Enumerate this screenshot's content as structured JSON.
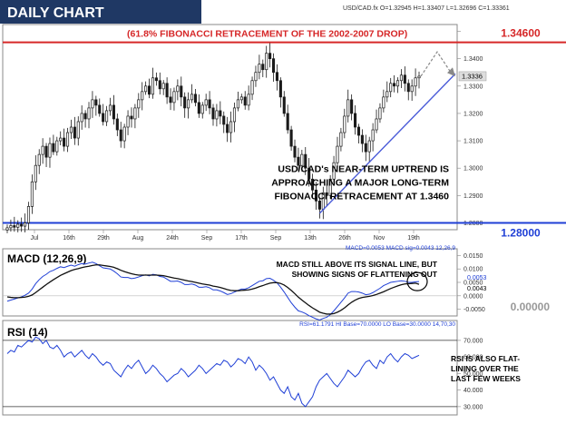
{
  "header": {
    "title": "DAILY CHART",
    "symbol_info": "USD/CAD.fx O=1.32945 H=1.33407 L=1.32696 C=1.33361"
  },
  "colors": {
    "title_bg": "#1f3864",
    "resistance": "#d62728",
    "support": "#1f3fd6",
    "trendline": "#4a5bd8",
    "up_candle": "#ffffff",
    "down_candle": "#1a1a1a",
    "macd": "#1f3fd6",
    "signal": "#111111",
    "rsi": "#1f3fd6"
  },
  "annotations": {
    "fib_label": "(61.8% FIBONACCI RETRACEMENT OF THE 2002-2007 DROP)",
    "fib_value": "1.34600",
    "support_value": "1.28000",
    "uptrend_note": [
      "USD/CAD's NEAR-TERM UPTREND IS",
      "APPROACHING A MAJOR LONG-TERM",
      "FIBONACCI RETRACEMENT AT 1.3460"
    ],
    "macd_note": [
      "MACD STILL ABOVE ITS SIGNAL LINE, BUT",
      "SHOWING SIGNS OF FLATTENING OUT"
    ],
    "rsi_note": [
      "RSI IS ALSO FLAT-",
      "LINING OVER THE",
      "LAST FEW WEEKS"
    ]
  },
  "macd_panel": {
    "title": "MACD (12,26,9)",
    "info": "MACD=0.0053 MACD sig=0.0043  12,26,9",
    "zero_value": "0.00000",
    "last_macd": "0.0053",
    "last_signal": "0.0043"
  },
  "rsi_panel": {
    "title": "RSI (14)",
    "info": "RSI=61.1791 HI Base=70.0000 LO Base=30.0000  14,70,30"
  },
  "price_axis": [
    "1.3500",
    "1.3400",
    "1.3300",
    "1.3200",
    "1.3100",
    "1.3000",
    "1.2900",
    "1.2800"
  ],
  "price_last": "1.3336",
  "macd_axis": [
    "0.0150",
    "0.0100",
    "0.0050",
    "0.0000",
    "-0.0050"
  ],
  "rsi_axis": [
    "70.000",
    "60.000",
    "50.000",
    "40.000",
    "30.000"
  ],
  "x_axis": [
    "Jul",
    "16th",
    "29th",
    "Aug",
    "24th",
    "Sep",
    "17th",
    "Sep",
    "13th",
    "26th",
    "Nov",
    "19th"
  ],
  "chart_data": {
    "type": "candlestick",
    "title": "DAILY CHART",
    "ylim": [
      1.2775,
      1.3525
    ],
    "x_ticks": [
      "Jul",
      "16th",
      "29th",
      "Aug",
      "24th",
      "Sep",
      "17th",
      "Sep",
      "13th",
      "26th",
      "Nov",
      "19th"
    ],
    "levels": [
      {
        "name": "(61.8% FIBONACCI RETRACEMENT OF THE 2002-2007 DROP)",
        "value": 1.346
      },
      {
        "name": "1.28000",
        "value": 1.28
      }
    ],
    "close": [
      1.2782,
      1.279,
      1.2784,
      1.2795,
      1.2788,
      1.28,
      1.286,
      1.295,
      1.301,
      1.305,
      1.308,
      1.304,
      1.309,
      1.306,
      1.31,
      1.311,
      1.308,
      1.313,
      1.315,
      1.311,
      1.317,
      1.32,
      1.318,
      1.322,
      1.325,
      1.323,
      1.32,
      1.317,
      1.321,
      1.323,
      1.318,
      1.314,
      1.31,
      1.315,
      1.319,
      1.318,
      1.322,
      1.325,
      1.328,
      1.33,
      1.327,
      1.333,
      1.332,
      1.329,
      1.331,
      1.326,
      1.324,
      1.328,
      1.33,
      1.326,
      1.322,
      1.325,
      1.327,
      1.324,
      1.32,
      1.323,
      1.325,
      1.322,
      1.318,
      1.321,
      1.319,
      1.316,
      1.313,
      1.317,
      1.322,
      1.325,
      1.326,
      1.323,
      1.327,
      1.332,
      1.335,
      1.338,
      1.336,
      1.342,
      1.34,
      1.335,
      1.332,
      1.326,
      1.32,
      1.314,
      1.308,
      1.304,
      1.301,
      1.305,
      1.3,
      1.296,
      1.292,
      1.288,
      1.285,
      1.291,
      1.29,
      1.296,
      1.302,
      1.308,
      1.313,
      1.319,
      1.325,
      1.32,
      1.315,
      1.312,
      1.309,
      1.306,
      1.31,
      1.314,
      1.318,
      1.322,
      1.326,
      1.328,
      1.331,
      1.33,
      1.332,
      1.334,
      1.331,
      1.328,
      1.33,
      1.333,
      1.3336
    ],
    "macd": [
      -0.002,
      -0.0016,
      -0.0012,
      -0.0008,
      -0.0004,
      0.0002,
      0.001,
      0.0025,
      0.0045,
      0.006,
      0.0072,
      0.008,
      0.009,
      0.0095,
      0.0102,
      0.0108,
      0.0105,
      0.011,
      0.0114,
      0.011,
      0.0116,
      0.012,
      0.0118,
      0.0122,
      0.0125,
      0.012,
      0.0112,
      0.0104,
      0.0102,
      0.01,
      0.0092,
      0.0082,
      0.007,
      0.0068,
      0.0068,
      0.0064,
      0.0066,
      0.007,
      0.0075,
      0.0078,
      0.0074,
      0.008,
      0.0078,
      0.0072,
      0.007,
      0.0062,
      0.0054,
      0.0054,
      0.0055,
      0.005,
      0.0042,
      0.0042,
      0.0044,
      0.004,
      0.0032,
      0.0032,
      0.0034,
      0.003,
      0.0022,
      0.0022,
      0.0018,
      0.0012,
      0.0005,
      0.0008,
      0.0014,
      0.002,
      0.0025,
      0.0025,
      0.003,
      0.0038,
      0.0046,
      0.0054,
      0.0056,
      0.0064,
      0.0065,
      0.0058,
      0.0048,
      0.0032,
      0.0014,
      -0.0006,
      -0.0026,
      -0.0042,
      -0.0056,
      -0.006,
      -0.0066,
      -0.0074,
      -0.008,
      -0.0086,
      -0.009,
      -0.0084,
      -0.008,
      -0.007,
      -0.0056,
      -0.004,
      -0.0024,
      -0.0008,
      0.001,
      0.0016,
      0.0016,
      0.0014,
      0.001,
      0.0004,
      0.0006,
      0.0012,
      0.002,
      0.0028,
      0.0038,
      0.0044,
      0.005,
      0.0052,
      0.0054,
      0.0056,
      0.0054,
      0.005,
      0.005,
      0.0052,
      0.0053
    ],
    "macd_signal": [
      -0.0004,
      -0.0006,
      -0.0007,
      -0.0007,
      -0.0006,
      -0.0005,
      -0.0002,
      0.0003,
      0.0012,
      0.0022,
      0.0032,
      0.0042,
      0.0051,
      0.006,
      0.0068,
      0.0076,
      0.0082,
      0.0088,
      0.0094,
      0.0098,
      0.0101,
      0.0105,
      0.0108,
      0.011,
      0.0113,
      0.0115,
      0.0115,
      0.0113,
      0.0111,
      0.0109,
      0.0106,
      0.0101,
      0.0095,
      0.009,
      0.0086,
      0.0082,
      0.0079,
      0.0077,
      0.0077,
      0.0077,
      0.0077,
      0.0077,
      0.0077,
      0.0076,
      0.0075,
      0.0072,
      0.0069,
      0.0066,
      0.0064,
      0.0061,
      0.0058,
      0.0055,
      0.0053,
      0.005,
      0.0047,
      0.0044,
      0.0042,
      0.004,
      0.0036,
      0.0034,
      0.0031,
      0.0027,
      0.0023,
      0.002,
      0.0019,
      0.0019,
      0.002,
      0.0021,
      0.0022,
      0.0025,
      0.0029,
      0.0034,
      0.0038,
      0.0043,
      0.0047,
      0.0049,
      0.0049,
      0.0046,
      0.004,
      0.0031,
      0.002,
      0.0008,
      -0.0005,
      -0.0016,
      -0.0026,
      -0.0036,
      -0.0045,
      -0.0053,
      -0.0061,
      -0.0065,
      -0.0068,
      -0.0068,
      -0.0066,
      -0.0061,
      -0.0054,
      -0.0045,
      -0.0034,
      -0.0024,
      -0.0016,
      -0.001,
      -0.0006,
      -0.0004,
      -0.0002,
      0.0001,
      0.0005,
      0.001,
      0.0015,
      0.0021,
      0.0027,
      0.0032,
      0.0037,
      0.0041,
      0.0044,
      0.0045,
      0.0046,
      0.0047,
      0.0043
    ],
    "rsi": [
      62,
      64,
      63,
      67,
      66,
      68,
      70,
      69,
      72,
      71,
      68,
      70,
      66,
      65,
      67,
      64,
      60,
      62,
      63,
      60,
      62,
      64,
      61,
      59,
      62,
      60,
      57,
      55,
      57,
      56,
      52,
      50,
      48,
      52,
      55,
      53,
      56,
      58,
      54,
      50,
      52,
      55,
      53,
      50,
      48,
      45,
      47,
      49,
      50,
      53,
      51,
      48,
      50,
      52,
      55,
      53,
      50,
      52,
      54,
      56,
      55,
      58,
      57,
      54,
      56,
      59,
      58,
      56,
      60,
      57,
      52,
      55,
      53,
      50,
      46,
      48,
      44,
      40,
      38,
      42,
      36,
      34,
      38,
      32,
      30,
      33,
      36,
      42,
      46,
      48,
      50,
      47,
      44,
      42,
      45,
      48,
      52,
      50,
      48,
      50,
      54,
      57,
      58,
      55,
      53,
      58,
      56,
      60,
      62,
      59,
      57,
      60,
      62,
      61,
      59,
      60,
      61
    ],
    "rsi_levels": [
      70,
      30
    ],
    "macd_ylim": [
      -0.0075,
      0.0175
    ],
    "rsi_ylim": [
      25,
      82
    ]
  }
}
